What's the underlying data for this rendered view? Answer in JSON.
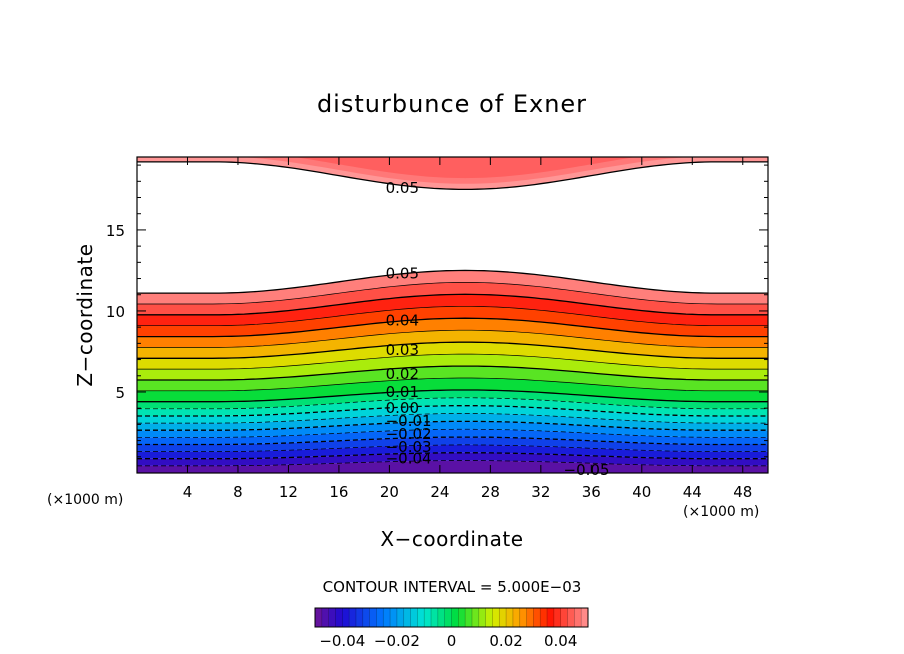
{
  "chart_data": {
    "type": "contour",
    "title": "disturbunce of Exner",
    "xlabel": "X−coordinate",
    "ylabel": "Z−coordinate",
    "x_unit": "(×1000 m)",
    "y_unit": "(×1000 m)",
    "xlim": [
      0,
      50
    ],
    "ylim": [
      0,
      19.5
    ],
    "x_ticks": [
      4,
      8,
      12,
      16,
      20,
      24,
      28,
      32,
      36,
      40,
      44,
      48
    ],
    "y_ticks": [
      5,
      10,
      15
    ],
    "x_tick_labels": [
      "4",
      "8",
      "12",
      "16",
      "20",
      "24",
      "28",
      "32",
      "36",
      "40",
      "44",
      "48"
    ],
    "y_tick_labels": [
      "5",
      "10",
      "15"
    ],
    "contour_interval_text": "CONTOUR INTERVAL = 5.000E−03",
    "contour_interval": 0.005,
    "value_range": [
      -0.05,
      0.05
    ],
    "field_shape": {
      "bump_center_x": 26,
      "bump_halfwidth_x": 20,
      "lower_bump_amplitude_z": 1.4,
      "upper_bump_amplitude_z": -1.7,
      "lower_zero_crossing_z": 4.4,
      "lower_max_z": 11.1,
      "upper_max_z": 19.2
    },
    "contour_labels": [
      {
        "text": "0.05",
        "x": 19.7,
        "z": 17.6
      },
      {
        "text": "0.05",
        "x": 19.7,
        "z": 12.3
      },
      {
        "text": "0.04",
        "x": 19.7,
        "z": 9.4
      },
      {
        "text": "0.03",
        "x": 19.7,
        "z": 7.6
      },
      {
        "text": "0.02",
        "x": 19.7,
        "z": 6.1
      },
      {
        "text": "0.01",
        "x": 19.7,
        "z": 5.0
      },
      {
        "text": "0.00",
        "x": 19.7,
        "z": 4.0
      },
      {
        "text": "−0.01",
        "x": 19.7,
        "z": 3.2
      },
      {
        "text": "−0.02",
        "x": 19.7,
        "z": 2.4
      },
      {
        "text": "−0.03",
        "x": 19.7,
        "z": 1.6
      },
      {
        "text": "−0.04",
        "x": 19.7,
        "z": 0.9
      },
      {
        "text": "−0.05",
        "x": 33.8,
        "z": 0.2
      }
    ],
    "colorbar": {
      "ticks": [
        -0.04,
        -0.02,
        0,
        0.02,
        0.04
      ],
      "tick_labels": [
        "−0.04",
        "−0.02",
        "0",
        "0.02",
        "0.04"
      ]
    }
  }
}
